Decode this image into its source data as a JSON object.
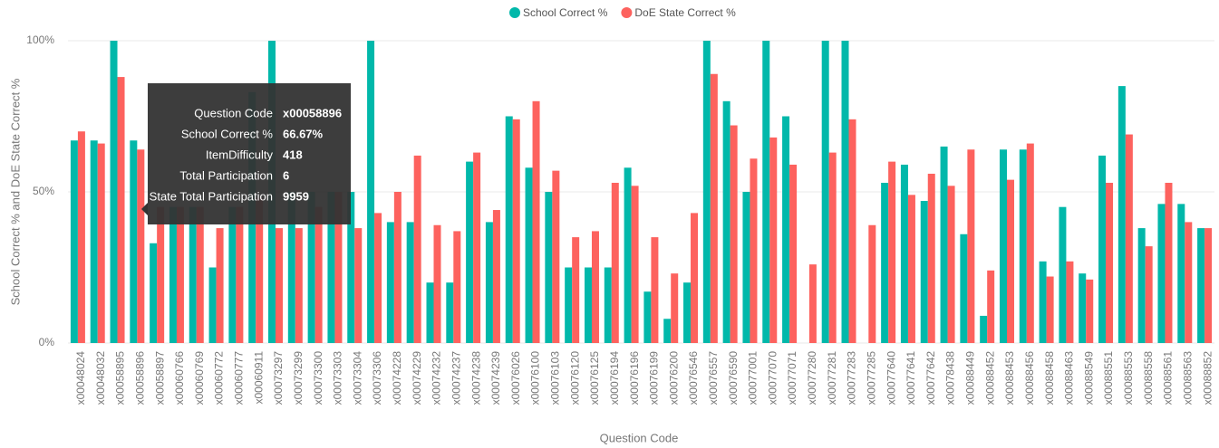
{
  "chart_data": {
    "type": "bar",
    "x_label": "Question Code",
    "y_label": "School Correct % and DoE State Correct %",
    "categories": [
      "x00048024",
      "x00048032",
      "x00058895",
      "x00058896",
      "x00058897",
      "x00060766",
      "x00060769",
      "x00060772",
      "x00060777",
      "x00060911",
      "x00073297",
      "x00073299",
      "x00073300",
      "x00073303",
      "x00073304",
      "x00073306",
      "x00074228",
      "x00074229",
      "x00074232",
      "x00074237",
      "x00074238",
      "x00074239",
      "x00076026",
      "x00076100",
      "x00076103",
      "x00076120",
      "x00076125",
      "x00076194",
      "x00076196",
      "x00076199",
      "x00076200",
      "x00076546",
      "x00076557",
      "x00076590",
      "x00077001",
      "x00077070",
      "x00077071",
      "x00077280",
      "x00077281",
      "x00077283",
      "x00077285",
      "x00077640",
      "x00077641",
      "x00077642",
      "x00078438",
      "x00088449",
      "x00088452",
      "x00088453",
      "x00088456",
      "x00088458",
      "x00088463",
      "x00088549",
      "x00088551",
      "x00088553",
      "x00088558",
      "x00088561",
      "x00088563",
      "x00088852"
    ],
    "series": [
      {
        "name": "School Correct %",
        "color": "#01B8AA",
        "values": [
          67,
          67,
          100,
          67,
          33,
          45,
          45,
          25,
          45,
          83,
          100,
          50,
          50,
          50,
          50,
          100,
          40,
          40,
          20,
          20,
          60,
          40,
          75,
          58,
          50,
          25,
          25,
          25,
          58,
          17,
          8,
          20,
          100,
          80,
          50,
          100,
          75,
          0,
          100,
          100,
          0,
          53,
          59,
          47,
          65,
          36,
          9,
          64,
          64,
          27,
          45,
          23,
          62,
          85,
          38,
          46,
          46,
          38
        ]
      },
      {
        "name": "DoE State Correct %",
        "color": "#FD625E",
        "values": [
          70,
          66,
          88,
          64,
          45,
          45,
          45,
          38,
          45,
          48,
          38,
          38,
          45,
          50,
          38,
          43,
          50,
          62,
          39,
          37,
          63,
          44,
          74,
          80,
          57,
          35,
          37,
          53,
          52,
          35,
          23,
          43,
          89,
          72,
          61,
          68,
          59,
          26,
          63,
          74,
          39,
          60,
          49,
          56,
          52,
          64,
          24,
          54,
          66,
          22,
          27,
          21,
          53,
          69,
          32,
          53,
          40,
          38
        ]
      }
    ],
    "ylim": [
      0,
      100
    ],
    "yticks": [
      {
        "value": 0,
        "label": "0%"
      },
      {
        "value": 50,
        "label": "50%"
      },
      {
        "value": 100,
        "label": "100%"
      }
    ],
    "grid": true,
    "legend": "top",
    "tooltip": [
      {
        "label": "Question Code",
        "value": "x00058896"
      },
      {
        "label": "School Correct %",
        "value": "66.67%"
      },
      {
        "label": "ItemDifficulty",
        "value": "418"
      },
      {
        "label": "Total Participation",
        "value": "6"
      },
      {
        "label": "State Total Participation",
        "value": "9959"
      }
    ]
  }
}
